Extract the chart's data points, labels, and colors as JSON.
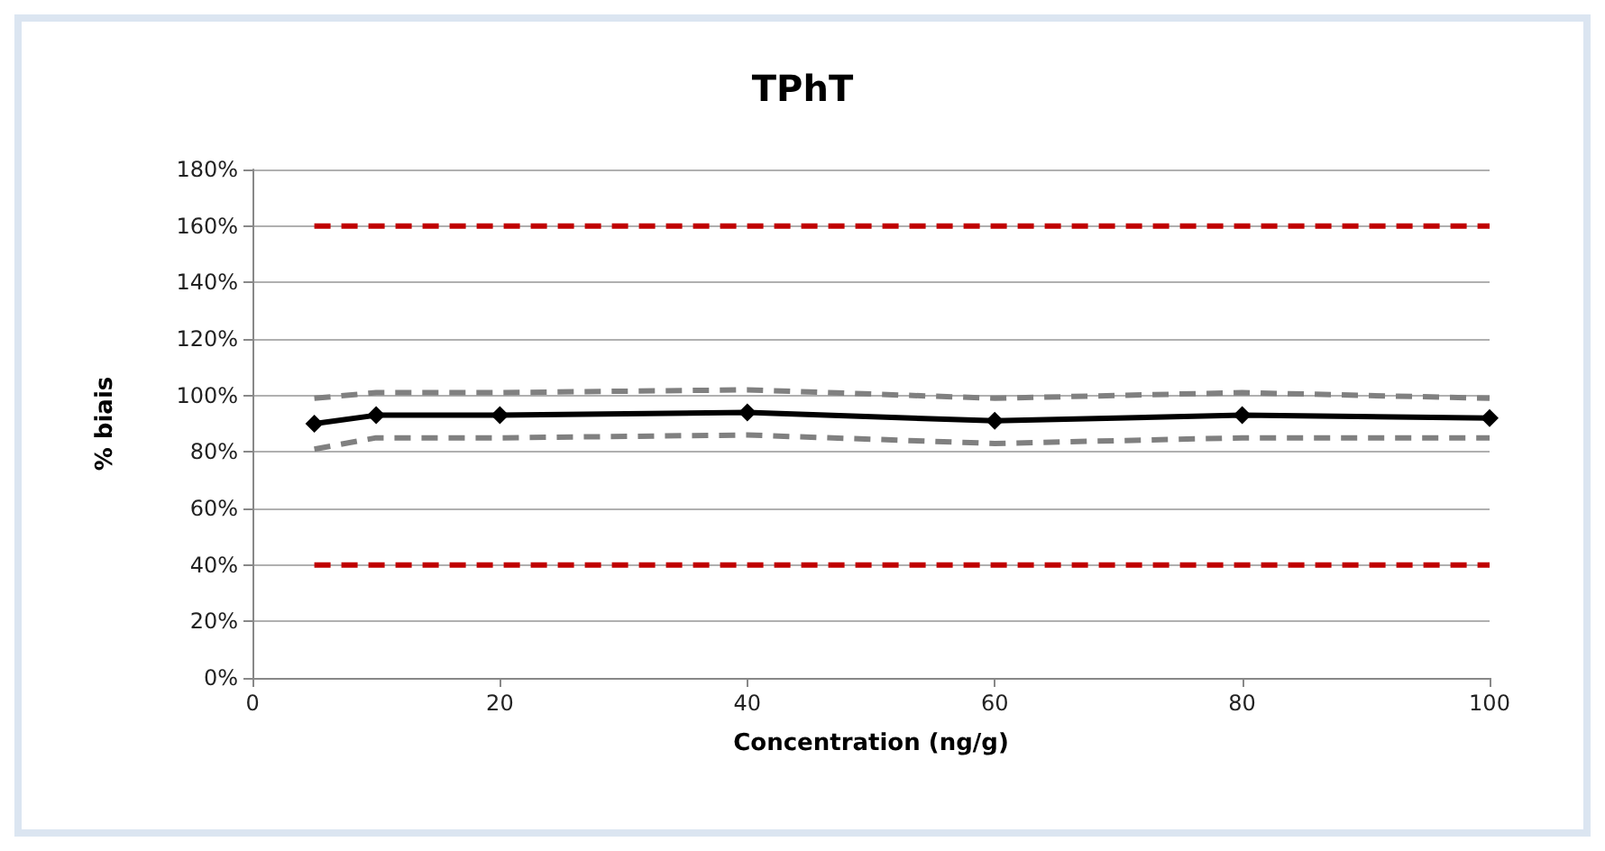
{
  "chart_data": {
    "type": "line",
    "title": "TPhT",
    "xlabel": "Concentration (ng/g)",
    "ylabel": "% biais",
    "xlim": [
      0,
      100
    ],
    "xticks": [
      0,
      20,
      40,
      60,
      80,
      100
    ],
    "ylim": [
      0,
      180
    ],
    "yticks": [
      {
        "value": 0,
        "label": "0%"
      },
      {
        "value": 20,
        "label": "20%"
      },
      {
        "value": 40,
        "label": "40%"
      },
      {
        "value": 60,
        "label": "60%"
      },
      {
        "value": 80,
        "label": "80%"
      },
      {
        "value": 100,
        "label": "100%"
      },
      {
        "value": 120,
        "label": "120%"
      },
      {
        "value": 140,
        "label": "140%"
      },
      {
        "value": 160,
        "label": "160%"
      },
      {
        "value": 180,
        "label": "180%"
      }
    ],
    "grid": "y",
    "series": [
      {
        "color": "#c00000",
        "x": [
          5,
          100
        ],
        "values": [
          160,
          160
        ],
        "line_style": "dashed",
        "marker": "none"
      },
      {
        "color": "#c00000",
        "x": [
          5,
          100
        ],
        "values": [
          40,
          40
        ],
        "line_style": "dashed",
        "marker": "none"
      },
      {
        "color": "#808080",
        "x": [
          5,
          10,
          20,
          40,
          60,
          80,
          100
        ],
        "values": [
          99,
          101,
          101,
          102,
          99,
          101,
          99
        ],
        "line_style": "dashed",
        "marker": "none"
      },
      {
        "color": "#808080",
        "x": [
          5,
          10,
          20,
          40,
          60,
          80,
          100
        ],
        "values": [
          81,
          85,
          85,
          86,
          83,
          85,
          85
        ],
        "line_style": "dashed",
        "marker": "none"
      },
      {
        "color": "#000000",
        "x": [
          5,
          10,
          20,
          40,
          60,
          80,
          100
        ],
        "values": [
          90,
          93,
          93,
          94,
          91,
          93,
          92
        ],
        "line_style": "solid",
        "marker": "diamond"
      }
    ]
  }
}
